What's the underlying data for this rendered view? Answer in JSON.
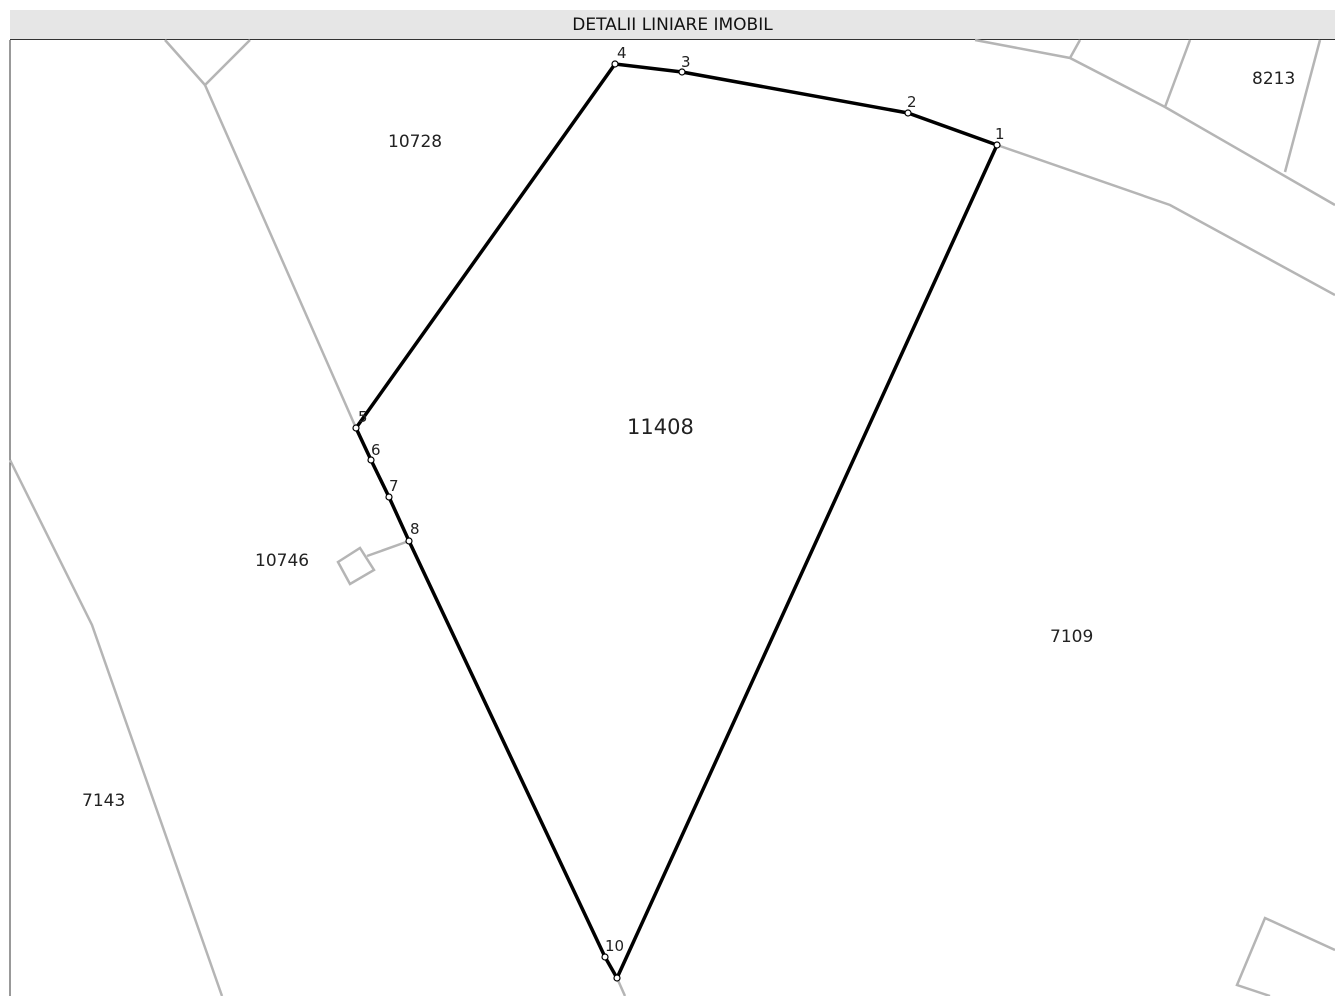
{
  "header": {
    "title": "DETALII LINIARE IMOBIL"
  },
  "parcels": [
    {
      "label": "10728"
    },
    {
      "label": "8213"
    },
    {
      "label": "11408"
    },
    {
      "label": "10746"
    },
    {
      "label": "7109"
    },
    {
      "label": "7143"
    }
  ],
  "vertices": [
    {
      "label": "1"
    },
    {
      "label": "2"
    },
    {
      "label": "3"
    },
    {
      "label": "4"
    },
    {
      "label": "5"
    },
    {
      "label": "6"
    },
    {
      "label": "7"
    },
    {
      "label": "8"
    },
    {
      "label": "10"
    }
  ]
}
